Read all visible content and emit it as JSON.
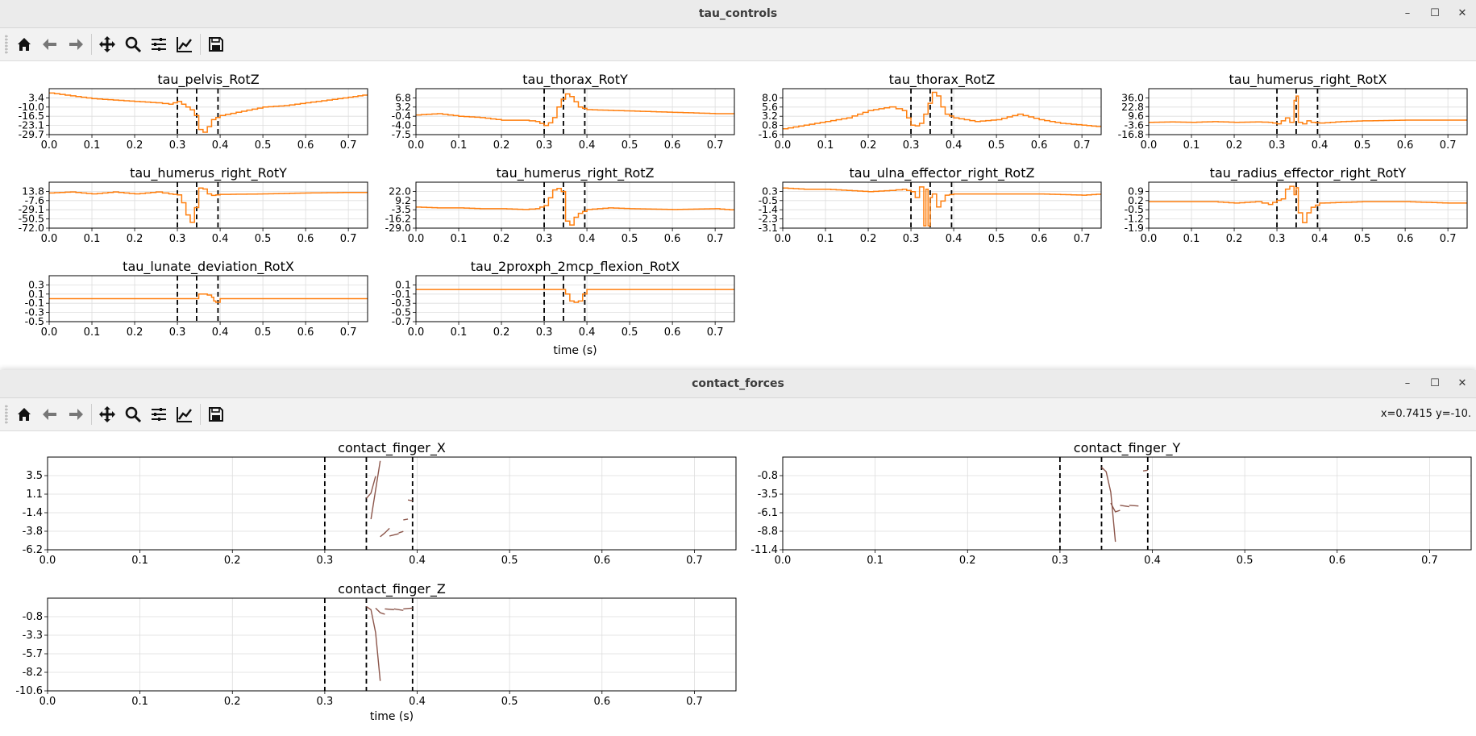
{
  "windows": {
    "tau": {
      "title": "tau_controls",
      "xlabel": "time (s)",
      "x_ticks": [
        "0.0",
        "0.1",
        "0.2",
        "0.3",
        "0.4",
        "0.5",
        "0.6",
        "0.7"
      ]
    },
    "contact": {
      "title": "contact_forces",
      "coords_readout": "x=0.7415 y=-10.",
      "xlabel": "time (s)",
      "x_ticks": [
        "0.0",
        "0.1",
        "0.2",
        "0.3",
        "0.4",
        "0.5",
        "0.6",
        "0.7"
      ]
    }
  },
  "toolbar_icons": [
    "home-icon",
    "back-arrow-icon",
    "forward-arrow-icon",
    "pan-icon",
    "zoom-icon",
    "subplots-icon",
    "edit-axes-icon",
    "save-icon"
  ],
  "window_buttons": {
    "minimize": "–",
    "maximize": "☐",
    "close": "✕"
  },
  "colors": {
    "tau_line": "#ff7f0e",
    "contact_line": "#8c564b",
    "vline": "#000000",
    "grid": "#dddddd"
  },
  "vlines_x": [
    0.3,
    0.345,
    0.395
  ],
  "chart_data": [
    {
      "id": "tau_pelvis_RotZ",
      "type": "line",
      "title": "tau_pelvis_RotZ",
      "xlim": [
        0,
        0.745
      ],
      "ylim": [
        -29.7,
        3.1
      ],
      "yticks": [
        "3.4",
        "-10.0",
        "-16.5",
        "-23.1",
        "-29.7"
      ],
      "x": [
        0,
        0.05,
        0.1,
        0.15,
        0.2,
        0.25,
        0.28,
        0.3,
        0.31,
        0.32,
        0.33,
        0.34,
        0.35,
        0.36,
        0.37,
        0.38,
        0.4,
        0.45,
        0.5,
        0.55,
        0.6,
        0.65,
        0.7,
        0.745
      ],
      "y": [
        0,
        -2,
        -4,
        -5,
        -6,
        -7,
        -8,
        -6,
        -8,
        -10,
        -12,
        -16,
        -26,
        -28,
        -24,
        -19,
        -16,
        -13,
        -10,
        -9,
        -7,
        -5,
        -3,
        -1
      ]
    },
    {
      "id": "tau_thorax_RotY",
      "type": "line",
      "title": "tau_thorax_RotY",
      "xlim": [
        0,
        0.745
      ],
      "ylim": [
        -7.5,
        10.0
      ],
      "yticks": [
        "6.8",
        "3.2",
        "-0.4",
        "-4.0",
        "-7.5"
      ],
      "x": [
        0,
        0.05,
        0.1,
        0.15,
        0.2,
        0.25,
        0.28,
        0.3,
        0.31,
        0.32,
        0.33,
        0.34,
        0.35,
        0.36,
        0.37,
        0.38,
        0.4,
        0.5,
        0.6,
        0.7,
        0.745
      ],
      "y": [
        0,
        0.5,
        -0.5,
        -1,
        -2,
        -2,
        -2.5,
        -4,
        -3,
        -1,
        3,
        6,
        8,
        7,
        5,
        3,
        2,
        1.5,
        1,
        0.5,
        0.5
      ]
    },
    {
      "id": "tau_thorax_RotZ",
      "type": "line",
      "title": "tau_thorax_RotZ",
      "xlim": [
        0,
        0.745
      ],
      "ylim": [
        -1.6,
        11.0
      ],
      "yticks": [
        "8.0",
        "5.6",
        "3.2",
        "0.8",
        "-1.6"
      ],
      "x": [
        0,
        0.05,
        0.1,
        0.15,
        0.2,
        0.25,
        0.28,
        0.3,
        0.31,
        0.32,
        0.33,
        0.34,
        0.35,
        0.36,
        0.37,
        0.38,
        0.4,
        0.45,
        0.5,
        0.55,
        0.6,
        0.65,
        0.7,
        0.745
      ],
      "y": [
        0,
        1,
        2,
        3,
        5,
        6,
        5,
        1,
        0.8,
        1.5,
        4,
        7,
        10,
        9,
        6,
        4,
        3,
        2,
        2.5,
        4,
        2.5,
        1.5,
        1,
        0.5
      ]
    },
    {
      "id": "tau_humerus_right_RotX",
      "type": "line",
      "title": "tau_humerus_right_RotX",
      "xlim": [
        0,
        0.745
      ],
      "ylim": [
        -16.8,
        46.0
      ],
      "yticks": [
        "36.0",
        "22.8",
        "9.6",
        "-3.6",
        "-16.8"
      ],
      "x": [
        0,
        0.05,
        0.1,
        0.15,
        0.2,
        0.25,
        0.28,
        0.3,
        0.31,
        0.32,
        0.33,
        0.34,
        0.345,
        0.35,
        0.36,
        0.37,
        0.38,
        0.4,
        0.45,
        0.5,
        0.6,
        0.7,
        0.745
      ],
      "y": [
        0,
        0.5,
        0,
        1,
        0,
        0.5,
        0,
        -2,
        2,
        6,
        0,
        30,
        36,
        0,
        -2,
        2,
        0,
        -1,
        1,
        2,
        3,
        3,
        3
      ]
    },
    {
      "id": "tau_humerus_right_RotY",
      "type": "line",
      "title": "tau_humerus_right_RotY",
      "xlim": [
        0,
        0.745
      ],
      "ylim": [
        -72.0,
        22.0
      ],
      "yticks": [
        "13.8",
        "-7.6",
        "-29.1",
        "-50.5",
        "-72.0"
      ],
      "x": [
        0,
        0.05,
        0.1,
        0.15,
        0.2,
        0.25,
        0.28,
        0.3,
        0.31,
        0.32,
        0.33,
        0.34,
        0.35,
        0.36,
        0.37,
        0.38,
        0.4,
        0.5,
        0.6,
        0.7,
        0.745
      ],
      "y": [
        0,
        2,
        -2,
        2,
        -2,
        2,
        -2,
        -4,
        -20,
        -45,
        -60,
        -30,
        10,
        8,
        -2,
        -5,
        -3,
        -2,
        0,
        1,
        1
      ]
    },
    {
      "id": "tau_humerus_right_RotZ",
      "type": "line",
      "title": "tau_humerus_right_RotZ",
      "xlim": [
        0,
        0.745
      ],
      "ylim": [
        -29.0,
        30.0
      ],
      "yticks": [
        "22.0",
        "9.2",
        "-3.5",
        "-16.2",
        "-29.0"
      ],
      "x": [
        0,
        0.05,
        0.1,
        0.15,
        0.2,
        0.25,
        0.28,
        0.3,
        0.31,
        0.32,
        0.33,
        0.34,
        0.35,
        0.36,
        0.37,
        0.38,
        0.4,
        0.45,
        0.5,
        0.6,
        0.7,
        0.745
      ],
      "y": [
        -2,
        -3,
        -3,
        -4,
        -4,
        -5,
        -4,
        0,
        10,
        20,
        22,
        18,
        -20,
        -25,
        -15,
        -10,
        -5,
        -3,
        -4,
        -5,
        -4,
        -6
      ]
    },
    {
      "id": "tau_ulna_effector_right_RotZ",
      "type": "line",
      "title": "tau_ulna_effector_right_RotZ",
      "xlim": [
        0,
        0.745
      ],
      "ylim": [
        -3.1,
        0.8
      ],
      "yticks": [
        "0.3",
        "-0.5",
        "-1.4",
        "-2.3",
        "-3.1"
      ],
      "x": [
        0,
        0.05,
        0.1,
        0.15,
        0.2,
        0.25,
        0.28,
        0.3,
        0.31,
        0.32,
        0.33,
        0.335,
        0.34,
        0.345,
        0.35,
        0.36,
        0.37,
        0.38,
        0.4,
        0.5,
        0.6,
        0.7,
        0.745
      ],
      "y": [
        0.3,
        0.2,
        0.2,
        0.1,
        0,
        0.1,
        0.2,
        0,
        -0.5,
        0.4,
        -2.9,
        0.2,
        -2.9,
        -0.5,
        -0.2,
        -1.3,
        -0.8,
        -0.3,
        -0.2,
        -0.2,
        -0.2,
        -0.3,
        -0.2
      ]
    },
    {
      "id": "tau_radius_effector_right_RotY",
      "type": "line",
      "title": "tau_radius_effector_right_RotY",
      "xlim": [
        0,
        0.745
      ],
      "ylim": [
        -1.9,
        1.4
      ],
      "yticks": [
        "0.9",
        "0.2",
        "-0.5",
        "-1.2",
        "-1.9"
      ],
      "x": [
        0,
        0.05,
        0.1,
        0.15,
        0.2,
        0.25,
        0.28,
        0.3,
        0.31,
        0.32,
        0.33,
        0.34,
        0.345,
        0.35,
        0.36,
        0.37,
        0.38,
        0.4,
        0.5,
        0.6,
        0.7,
        0.745
      ],
      "y": [
        0,
        0,
        0,
        0,
        -0.1,
        0,
        -0.2,
        0.1,
        0.2,
        0.9,
        1.1,
        0.5,
        1.0,
        -0.8,
        -1.5,
        -0.8,
        -0.4,
        -0.1,
        0,
        0,
        -0.1,
        -0.1
      ]
    },
    {
      "id": "tau_lunate_deviation_RotX",
      "type": "line",
      "title": "tau_lunate_deviation_RotX",
      "xlim": [
        0,
        0.745
      ],
      "ylim": [
        -0.5,
        0.5
      ],
      "yticks": [
        "0.3",
        "0.1",
        "-0.1",
        "-0.3",
        "-0.5"
      ],
      "x": [
        0,
        0.3,
        0.34,
        0.35,
        0.36,
        0.37,
        0.38,
        0.385,
        0.39,
        0.4,
        0.5,
        0.745
      ],
      "y": [
        0,
        0,
        0,
        0.1,
        0.1,
        0.08,
        0.03,
        -0.05,
        -0.08,
        0,
        0,
        0
      ]
    },
    {
      "id": "tau_2proxph_2mcp_flexion_RotX",
      "type": "line",
      "title": "tau_2proxph_2mcp_flexion_RotX",
      "xlim": [
        0,
        0.745
      ],
      "ylim": [
        -0.7,
        0.3
      ],
      "yticks": [
        "0.1",
        "-0.1",
        "-0.3",
        "-0.5",
        "-0.7"
      ],
      "x": [
        0,
        0.34,
        0.35,
        0.36,
        0.37,
        0.38,
        0.39,
        0.4,
        0.5,
        0.745
      ],
      "y": [
        0,
        0,
        -0.1,
        -0.25,
        -0.28,
        -0.25,
        -0.1,
        0,
        0,
        0
      ]
    },
    {
      "id": "contact_finger_X",
      "type": "line",
      "title": "contact_finger_X",
      "xlim": [
        0,
        0.745
      ],
      "ylim": [
        -6.2,
        5.9
      ],
      "yticks": [
        "3.5",
        "1.1",
        "-1.4",
        "-3.8",
        "-6.2"
      ],
      "segments": [
        {
          "x": [
            0.345,
            0.35,
            0.355
          ],
          "y": [
            0.5,
            1.2,
            3.4
          ]
        },
        {
          "x": [
            0.35,
            0.36
          ],
          "y": [
            -2.2,
            5.4
          ]
        },
        {
          "x": [
            0.36,
            0.365,
            0.37
          ],
          "y": [
            -4.5,
            -4.0,
            -3.4
          ]
        },
        {
          "x": [
            0.37,
            0.38
          ],
          "y": [
            -4.4,
            -4.1
          ]
        },
        {
          "x": [
            0.38,
            0.385
          ],
          "y": [
            -4.0,
            -3.8
          ]
        },
        {
          "x": [
            0.385,
            0.39
          ],
          "y": [
            -2.3,
            -2.2
          ]
        },
        {
          "x": [
            0.39,
            0.395
          ],
          "y": [
            0.3,
            0.2
          ]
        }
      ]
    },
    {
      "id": "contact_finger_Y",
      "type": "line",
      "title": "contact_finger_Y",
      "xlim": [
        0,
        0.745
      ],
      "ylim": [
        -11.4,
        1.3
      ],
      "yticks": [
        "-0.8",
        "-3.5",
        "-6.1",
        "-8.8",
        "-11.4"
      ],
      "segments": [
        {
          "x": [
            0.345,
            0.35,
            0.355,
            0.36
          ],
          "y": [
            -0.1,
            -0.7,
            -3.5,
            -10.3
          ]
        },
        {
          "x": [
            0.355,
            0.36,
            0.365
          ],
          "y": [
            -5.0,
            -6.2,
            -6.0
          ]
        },
        {
          "x": [
            0.365,
            0.37,
            0.375
          ],
          "y": [
            -5.3,
            -5.4,
            -5.5
          ]
        },
        {
          "x": [
            0.375,
            0.385
          ],
          "y": [
            -5.3,
            -5.4
          ]
        },
        {
          "x": [
            0.39,
            0.395
          ],
          "y": [
            -0.6,
            -0.5
          ]
        }
      ]
    },
    {
      "id": "contact_finger_Z",
      "type": "line",
      "title": "contact_finger_Z",
      "xlim": [
        0,
        0.745
      ],
      "ylim": [
        -10.6,
        1.5
      ],
      "yticks": [
        "-0.8",
        "-3.3",
        "-5.7",
        "-8.2",
        "-10.6"
      ],
      "segments": [
        {
          "x": [
            0.345,
            0.35,
            0.355,
            0.36
          ],
          "y": [
            0.4,
            0.0,
            -3.0,
            -9.3
          ]
        },
        {
          "x": [
            0.355,
            0.36,
            0.365
          ],
          "y": [
            0.2,
            -0.4,
            -0.6
          ]
        },
        {
          "x": [
            0.365,
            0.375
          ],
          "y": [
            0.1,
            0.0
          ]
        },
        {
          "x": [
            0.375,
            0.385
          ],
          "y": [
            0.1,
            -0.1
          ]
        },
        {
          "x": [
            0.385,
            0.395
          ],
          "y": [
            0.1,
            0.2
          ]
        }
      ]
    }
  ]
}
